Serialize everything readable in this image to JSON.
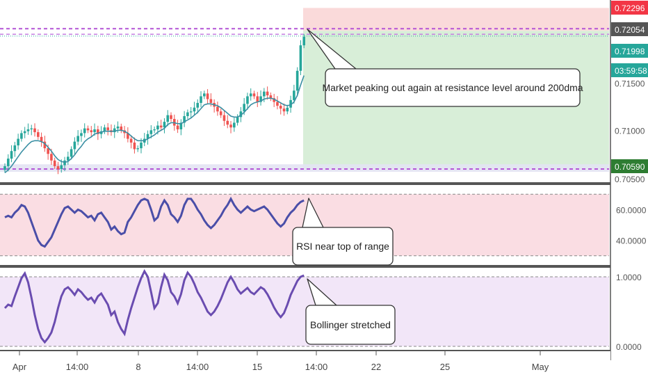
{
  "chart_data": [
    {
      "type": "candlestick",
      "title": "",
      "price_axis_labels": [
        "0.71000"
      ],
      "price_tags": [
        {
          "label": "0.72296",
          "color": "#f23645"
        },
        {
          "label": "0.72054",
          "color": "#555555"
        },
        {
          "label": "0.71998",
          "color": "#26a69a"
        },
        {
          "label": "03:59:58",
          "color": "#26a69a"
        },
        {
          "label": "0.70590",
          "color": "#2e7d32"
        }
      ],
      "partially_hidden_axis_labels": [
        "0.71500",
        "0.70500"
      ],
      "ylim": [
        0.7045,
        0.7238
      ],
      "resistance_level": 0.72054,
      "support_level": 0.7059,
      "last_price": 0.71998,
      "position_tool": {
        "target": 0.72296,
        "entry": 0.72054,
        "stop": 0.7059
      },
      "close_series": [
        0.7062,
        0.707,
        0.7078,
        0.7084,
        0.7091,
        0.7097,
        0.7099,
        0.7101,
        0.7102,
        0.7098,
        0.7093,
        0.7088,
        0.7081,
        0.7075,
        0.7068,
        0.7062,
        0.7059,
        0.7063,
        0.7068,
        0.7072,
        0.708,
        0.7088,
        0.7094,
        0.7097,
        0.7102,
        0.71,
        0.7098,
        0.7101,
        0.7096,
        0.7099,
        0.7103,
        0.71,
        0.7098,
        0.7102,
        0.7104,
        0.71,
        0.7097,
        0.7091,
        0.7087,
        0.708,
        0.7081,
        0.7087,
        0.7091,
        0.7096,
        0.71,
        0.7101,
        0.7105,
        0.7103,
        0.7109,
        0.7116,
        0.7112,
        0.7105,
        0.7101,
        0.7108,
        0.7115,
        0.7119,
        0.712,
        0.7124,
        0.7129,
        0.7136,
        0.7139,
        0.7133,
        0.7129,
        0.7125,
        0.712,
        0.7116,
        0.711,
        0.7106,
        0.7103,
        0.7108,
        0.7114,
        0.712,
        0.7128,
        0.7136,
        0.7139,
        0.7136,
        0.713,
        0.7136,
        0.7141,
        0.7137,
        0.7134,
        0.713,
        0.7126,
        0.7123,
        0.712,
        0.7124,
        0.7132,
        0.7142,
        0.7163,
        0.719,
        0.7199
      ],
      "moving_average": [
        0.7055,
        0.7058,
        0.7062,
        0.7067,
        0.7072,
        0.7077,
        0.7081,
        0.7085,
        0.7088,
        0.7089,
        0.7089,
        0.7088,
        0.7086,
        0.7082,
        0.7078,
        0.7073,
        0.7069,
        0.7067,
        0.7066,
        0.7067,
        0.707,
        0.7074,
        0.7079,
        0.7083,
        0.7088,
        0.7091,
        0.7093,
        0.7096,
        0.7097,
        0.7098,
        0.7099,
        0.7099,
        0.7099,
        0.7099,
        0.71,
        0.71,
        0.7099,
        0.7097,
        0.7094,
        0.7091,
        0.7089,
        0.7089,
        0.7089,
        0.7091,
        0.7093,
        0.7095,
        0.7098,
        0.71,
        0.7102,
        0.7106,
        0.7108,
        0.7108,
        0.7107,
        0.7107,
        0.7109,
        0.7111,
        0.7113,
        0.7116,
        0.7119,
        0.7123,
        0.7127,
        0.7128,
        0.7128,
        0.7127,
        0.7126,
        0.7124,
        0.7121,
        0.7118,
        0.7115,
        0.7114,
        0.7114,
        0.7116,
        0.7119,
        0.7123,
        0.7127,
        0.7129,
        0.713,
        0.7131,
        0.7133,
        0.7134,
        0.7134,
        0.7133,
        0.7131,
        0.7129,
        0.7127,
        0.7126,
        0.7127,
        0.713,
        0.7137,
        0.7148,
        0.7158
      ],
      "xlabels": [
        "Apr",
        "14:00",
        "8",
        "14:00",
        "15",
        "14:00",
        "22",
        "25",
        "May"
      ],
      "annotation": "Market peaking out again at resistance level around 200dma"
    },
    {
      "type": "line",
      "title": "",
      "ylabels": [
        "60.0000",
        "40.0000"
      ],
      "ylim": [
        24,
        76
      ],
      "upper_band": 70,
      "lower_band": 30,
      "series": [
        {
          "values": [
            55,
            56,
            55,
            58,
            60,
            63,
            62,
            58,
            52,
            46,
            40,
            37,
            36,
            39,
            42,
            47,
            52,
            57,
            61,
            62,
            60,
            58,
            60,
            59,
            57,
            55,
            56,
            53,
            57,
            58,
            55,
            52,
            47,
            49,
            46,
            44,
            45,
            52,
            55,
            59,
            63,
            66,
            67,
            66,
            60,
            53,
            55,
            62,
            66,
            63,
            57,
            55,
            52,
            56,
            63,
            67,
            67,
            64,
            60,
            57,
            53,
            50,
            48,
            50,
            53,
            56,
            60,
            63,
            67,
            63,
            60,
            58,
            60,
            62,
            60,
            59,
            60,
            61,
            62,
            60,
            57,
            54,
            51,
            49,
            51,
            55,
            58,
            60,
            63,
            65,
            66
          ]
        }
      ],
      "annotation": "RSI near top of range"
    },
    {
      "type": "line",
      "title": "",
      "ylabels": [
        "1.0000",
        "0.0000"
      ],
      "ylim": [
        -0.05,
        1.13
      ],
      "upper_band": 1.0,
      "lower_band": 0.0,
      "series": [
        {
          "values": [
            0.55,
            0.6,
            0.58,
            0.72,
            0.85,
            0.98,
            1.05,
            0.92,
            0.7,
            0.45,
            0.25,
            0.12,
            0.06,
            0.12,
            0.2,
            0.35,
            0.55,
            0.72,
            0.82,
            0.85,
            0.8,
            0.74,
            0.82,
            0.78,
            0.72,
            0.67,
            0.7,
            0.63,
            0.72,
            0.76,
            0.68,
            0.6,
            0.45,
            0.5,
            0.35,
            0.25,
            0.18,
            0.38,
            0.55,
            0.7,
            0.85,
            0.98,
            1.08,
            1.0,
            0.78,
            0.55,
            0.62,
            0.85,
            1.03,
            0.95,
            0.78,
            0.72,
            0.62,
            0.75,
            0.95,
            1.06,
            1.0,
            0.9,
            0.78,
            0.7,
            0.6,
            0.5,
            0.45,
            0.5,
            0.58,
            0.68,
            0.8,
            0.92,
            1.0,
            0.92,
            0.82,
            0.76,
            0.8,
            0.84,
            0.78,
            0.75,
            0.8,
            0.85,
            0.82,
            0.75,
            0.66,
            0.56,
            0.48,
            0.42,
            0.48,
            0.6,
            0.74,
            0.84,
            0.94,
            1.0,
            1.02
          ]
        }
      ],
      "annotation": "Bollinger stretched"
    }
  ]
}
